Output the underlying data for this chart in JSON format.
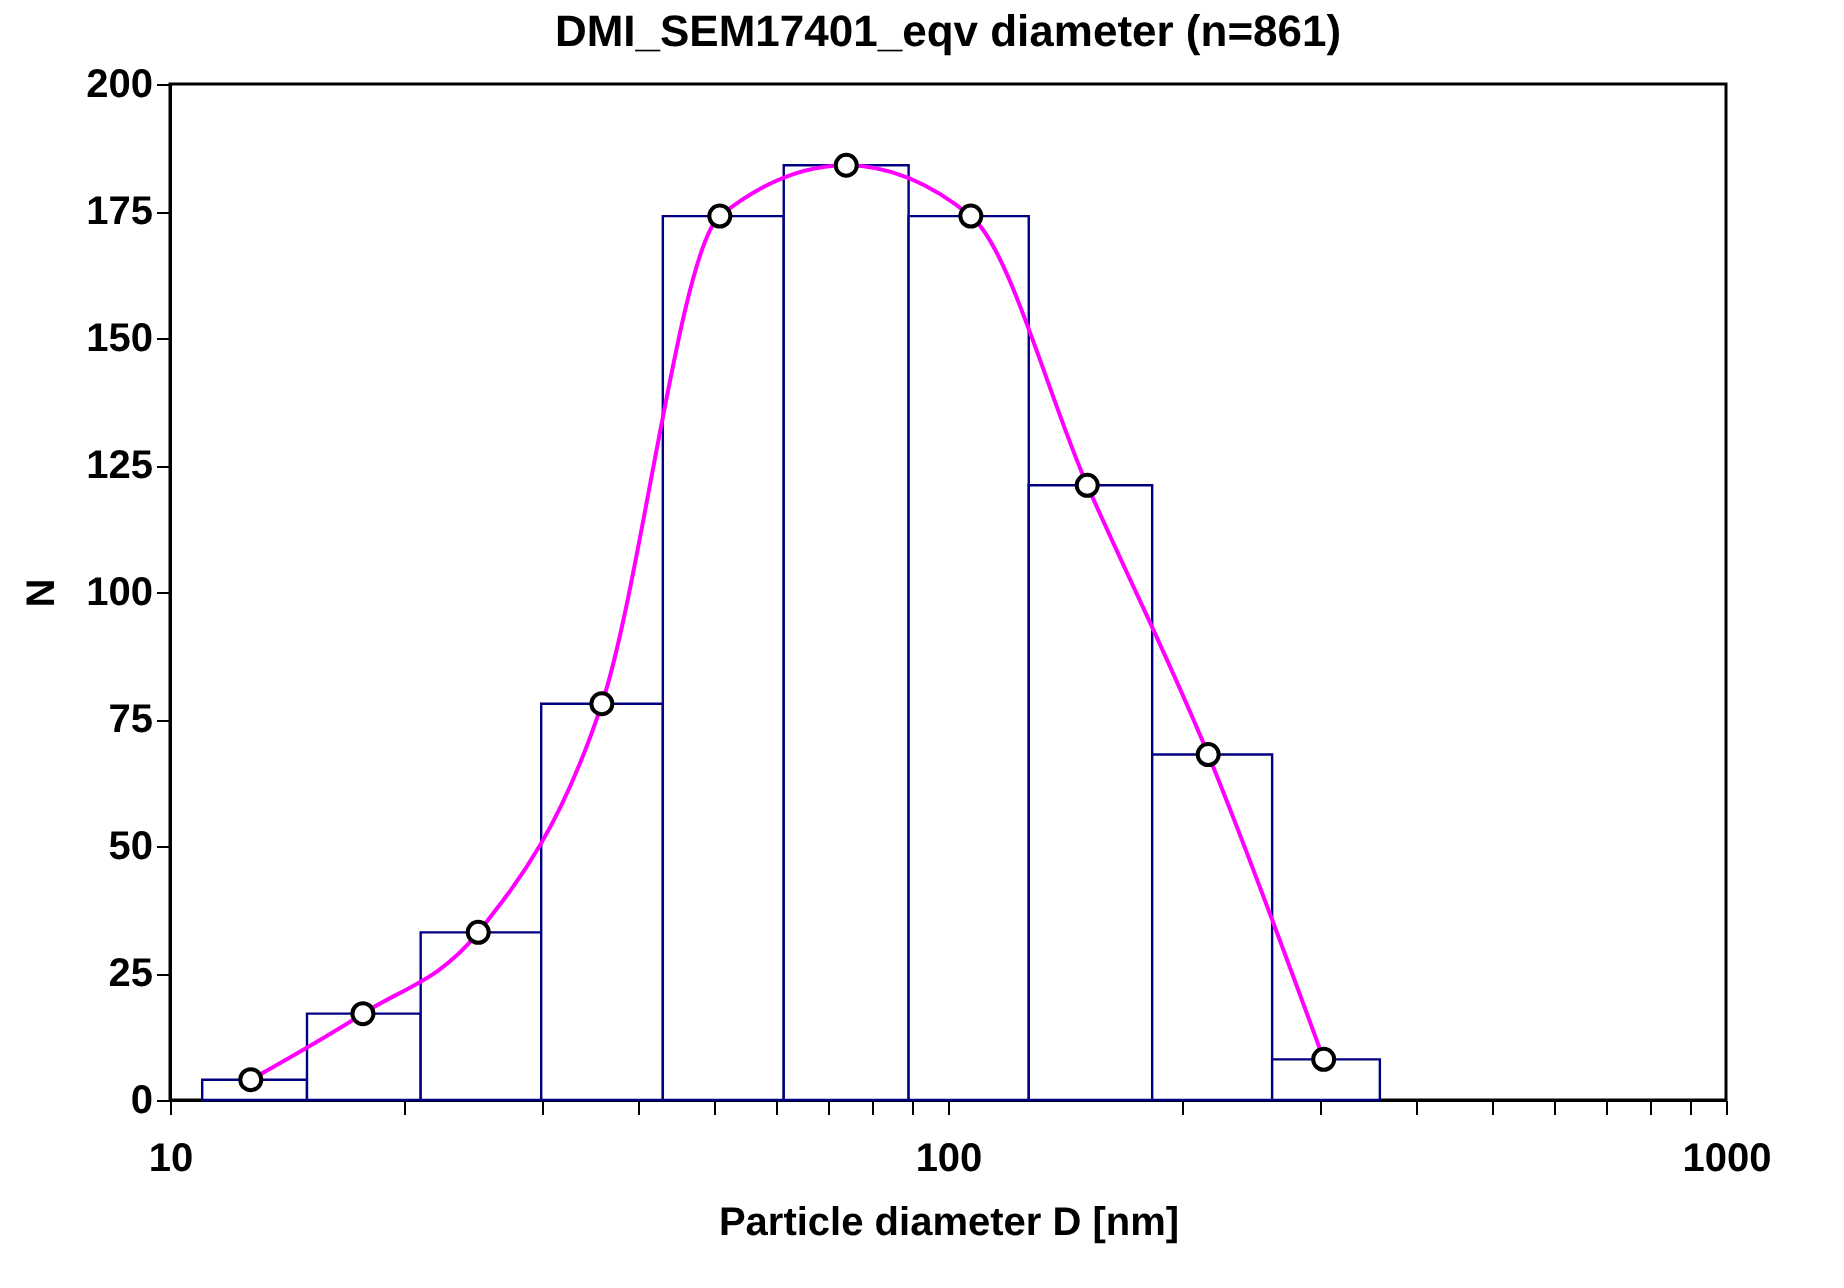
{
  "chart_data": {
    "type": "histogram",
    "title": "DMI_SEM17401_eqv diameter (n=861)",
    "xlabel": "Particle diameter D [nm]",
    "ylabel": "N",
    "bins": [
      11,
      15,
      21,
      30,
      43,
      61.5,
      89,
      127,
      183,
      261,
      359
    ],
    "values": [
      4,
      17,
      33,
      78,
      174,
      184,
      174,
      121,
      68,
      8
    ],
    "color": "#000080",
    "series": [
      {
        "type": "line",
        "color": "#ff00ff",
        "marker": "circle",
        "x": [
          12.7,
          17.7,
          24.9,
          35.9,
          50.9,
          74,
          107,
          151,
          216,
          304
        ],
        "values": [
          4,
          17,
          33,
          78,
          174,
          184,
          174,
          121,
          68,
          8
        ]
      }
    ],
    "log": "x",
    "xlim": [
      10,
      1000
    ],
    "xticks": [
      10,
      {
        "value": 20,
        "label": null
      },
      {
        "value": 30,
        "label": null
      },
      {
        "value": 40,
        "label": null
      },
      {
        "value": 50,
        "label": null
      },
      {
        "value": 60,
        "label": null
      },
      {
        "value": 70,
        "label": null
      },
      {
        "value": 80,
        "label": null
      },
      {
        "value": 90,
        "label": null
      },
      100,
      {
        "value": 200,
        "label": null
      },
      {
        "value": 300,
        "label": null
      },
      {
        "value": 400,
        "label": null
      },
      {
        "value": 500,
        "label": null
      },
      {
        "value": 600,
        "label": null
      },
      {
        "value": 700,
        "label": null
      },
      {
        "value": 800,
        "label": null
      },
      {
        "value": 900,
        "label": null
      },
      1000
    ],
    "ylim": [
      0,
      200
    ],
    "yticks": [
      0,
      25,
      50,
      75,
      100,
      125,
      150,
      175,
      200
    ],
    "grid": false
  }
}
